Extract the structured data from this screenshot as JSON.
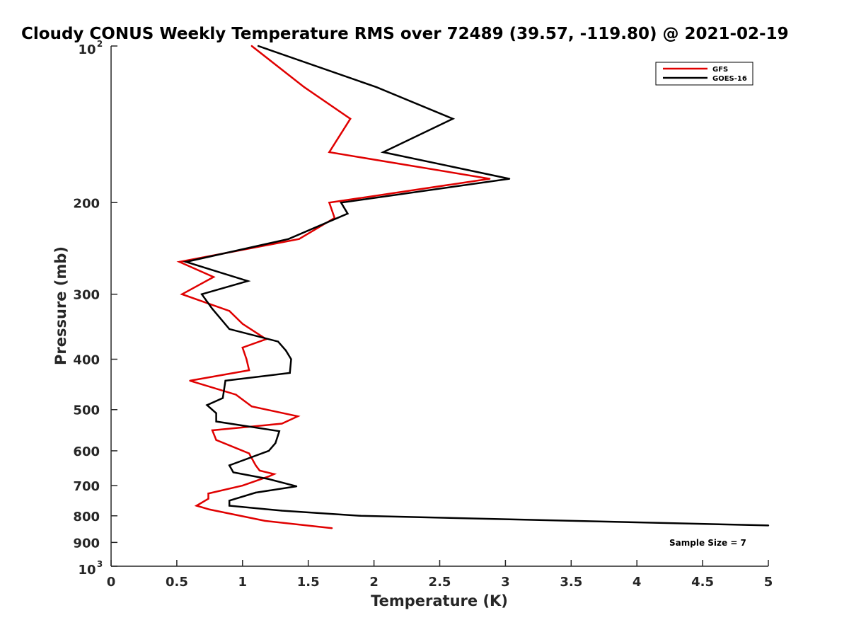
{
  "chart_data": {
    "type": "line",
    "title": "Cloudy CONUS Weekly Temperature RMS over 72489 (39.57, -119.80) @ 2021-02-19",
    "xlabel": "Temperature (K)",
    "ylabel": "Pressure (mb)",
    "xlim": [
      0,
      5
    ],
    "ylim": [
      100,
      1000
    ],
    "y_scale": "log",
    "y_reversed": true,
    "x_ticks": [
      {
        "value": 0,
        "label": "0"
      },
      {
        "value": 0.5,
        "label": "0.5"
      },
      {
        "value": 1,
        "label": "1"
      },
      {
        "value": 1.5,
        "label": "1.5"
      },
      {
        "value": 2,
        "label": "2"
      },
      {
        "value": 2.5,
        "label": "2.5"
      },
      {
        "value": 3,
        "label": "3"
      },
      {
        "value": 3.5,
        "label": "3.5"
      },
      {
        "value": 4,
        "label": "4"
      },
      {
        "value": 4.5,
        "label": "4.5"
      },
      {
        "value": 5,
        "label": "5"
      }
    ],
    "y_ticks": [
      {
        "value": 100,
        "base": "10",
        "exp": "2"
      },
      {
        "value": 200,
        "label": "200"
      },
      {
        "value": 300,
        "label": "300"
      },
      {
        "value": 400,
        "label": "400"
      },
      {
        "value": 500,
        "label": "500"
      },
      {
        "value": 600,
        "label": "600"
      },
      {
        "value": 700,
        "label": "700"
      },
      {
        "value": 800,
        "label": "800"
      },
      {
        "value": 900,
        "label": "900"
      },
      {
        "value": 1000,
        "base": "10",
        "exp": "3"
      }
    ],
    "grid": false,
    "legend": {
      "placement": "top-right"
    },
    "annotation": "Sample Size = 7",
    "series": [
      {
        "name": "GFS",
        "color": "#e00000",
        "points": [
          [
            1.07,
            100
          ],
          [
            1.47,
            120
          ],
          [
            1.82,
            138
          ],
          [
            1.66,
            160
          ],
          [
            2.88,
            180
          ],
          [
            1.66,
            200
          ],
          [
            1.7,
            214
          ],
          [
            1.43,
            235
          ],
          [
            0.52,
            260
          ],
          [
            0.78,
            278
          ],
          [
            0.54,
            300
          ],
          [
            0.9,
            323
          ],
          [
            1.0,
            342
          ],
          [
            1.18,
            366
          ],
          [
            1.0,
            380
          ],
          [
            1.03,
            400
          ],
          [
            1.05,
            420
          ],
          [
            0.6,
            440
          ],
          [
            0.95,
            468
          ],
          [
            1.07,
            493
          ],
          [
            1.42,
            515
          ],
          [
            1.3,
            532
          ],
          [
            0.77,
            548
          ],
          [
            0.8,
            572
          ],
          [
            1.05,
            607
          ],
          [
            1.1,
            640
          ],
          [
            1.13,
            655
          ],
          [
            1.24,
            665
          ],
          [
            1.2,
            672
          ],
          [
            1.0,
            700
          ],
          [
            0.74,
            725
          ],
          [
            0.74,
            742
          ],
          [
            0.65,
            765
          ],
          [
            0.75,
            778
          ],
          [
            1.17,
            818
          ],
          [
            1.68,
            845
          ]
        ]
      },
      {
        "name": "GOES-16",
        "color": "#000000",
        "points": [
          [
            1.12,
            100
          ],
          [
            2.02,
            120
          ],
          [
            2.6,
            138
          ],
          [
            2.07,
            160
          ],
          [
            3.03,
            180
          ],
          [
            1.75,
            200
          ],
          [
            1.8,
            210
          ],
          [
            1.35,
            235
          ],
          [
            0.57,
            260
          ],
          [
            1.04,
            283
          ],
          [
            0.69,
            300
          ],
          [
            0.77,
            320
          ],
          [
            0.9,
            350
          ],
          [
            1.27,
            370
          ],
          [
            1.33,
            385
          ],
          [
            1.37,
            400
          ],
          [
            1.36,
            425
          ],
          [
            0.87,
            440
          ],
          [
            0.85,
            475
          ],
          [
            0.73,
            490
          ],
          [
            0.8,
            508
          ],
          [
            0.8,
            527
          ],
          [
            1.28,
            550
          ],
          [
            1.25,
            580
          ],
          [
            1.2,
            600
          ],
          [
            0.9,
            640
          ],
          [
            0.93,
            660
          ],
          [
            1.2,
            680
          ],
          [
            1.41,
            702
          ],
          [
            1.1,
            722
          ],
          [
            0.9,
            748
          ],
          [
            0.9,
            765
          ],
          [
            1.3,
            782
          ],
          [
            1.9,
            800
          ],
          [
            5.0,
            835
          ]
        ]
      }
    ]
  }
}
